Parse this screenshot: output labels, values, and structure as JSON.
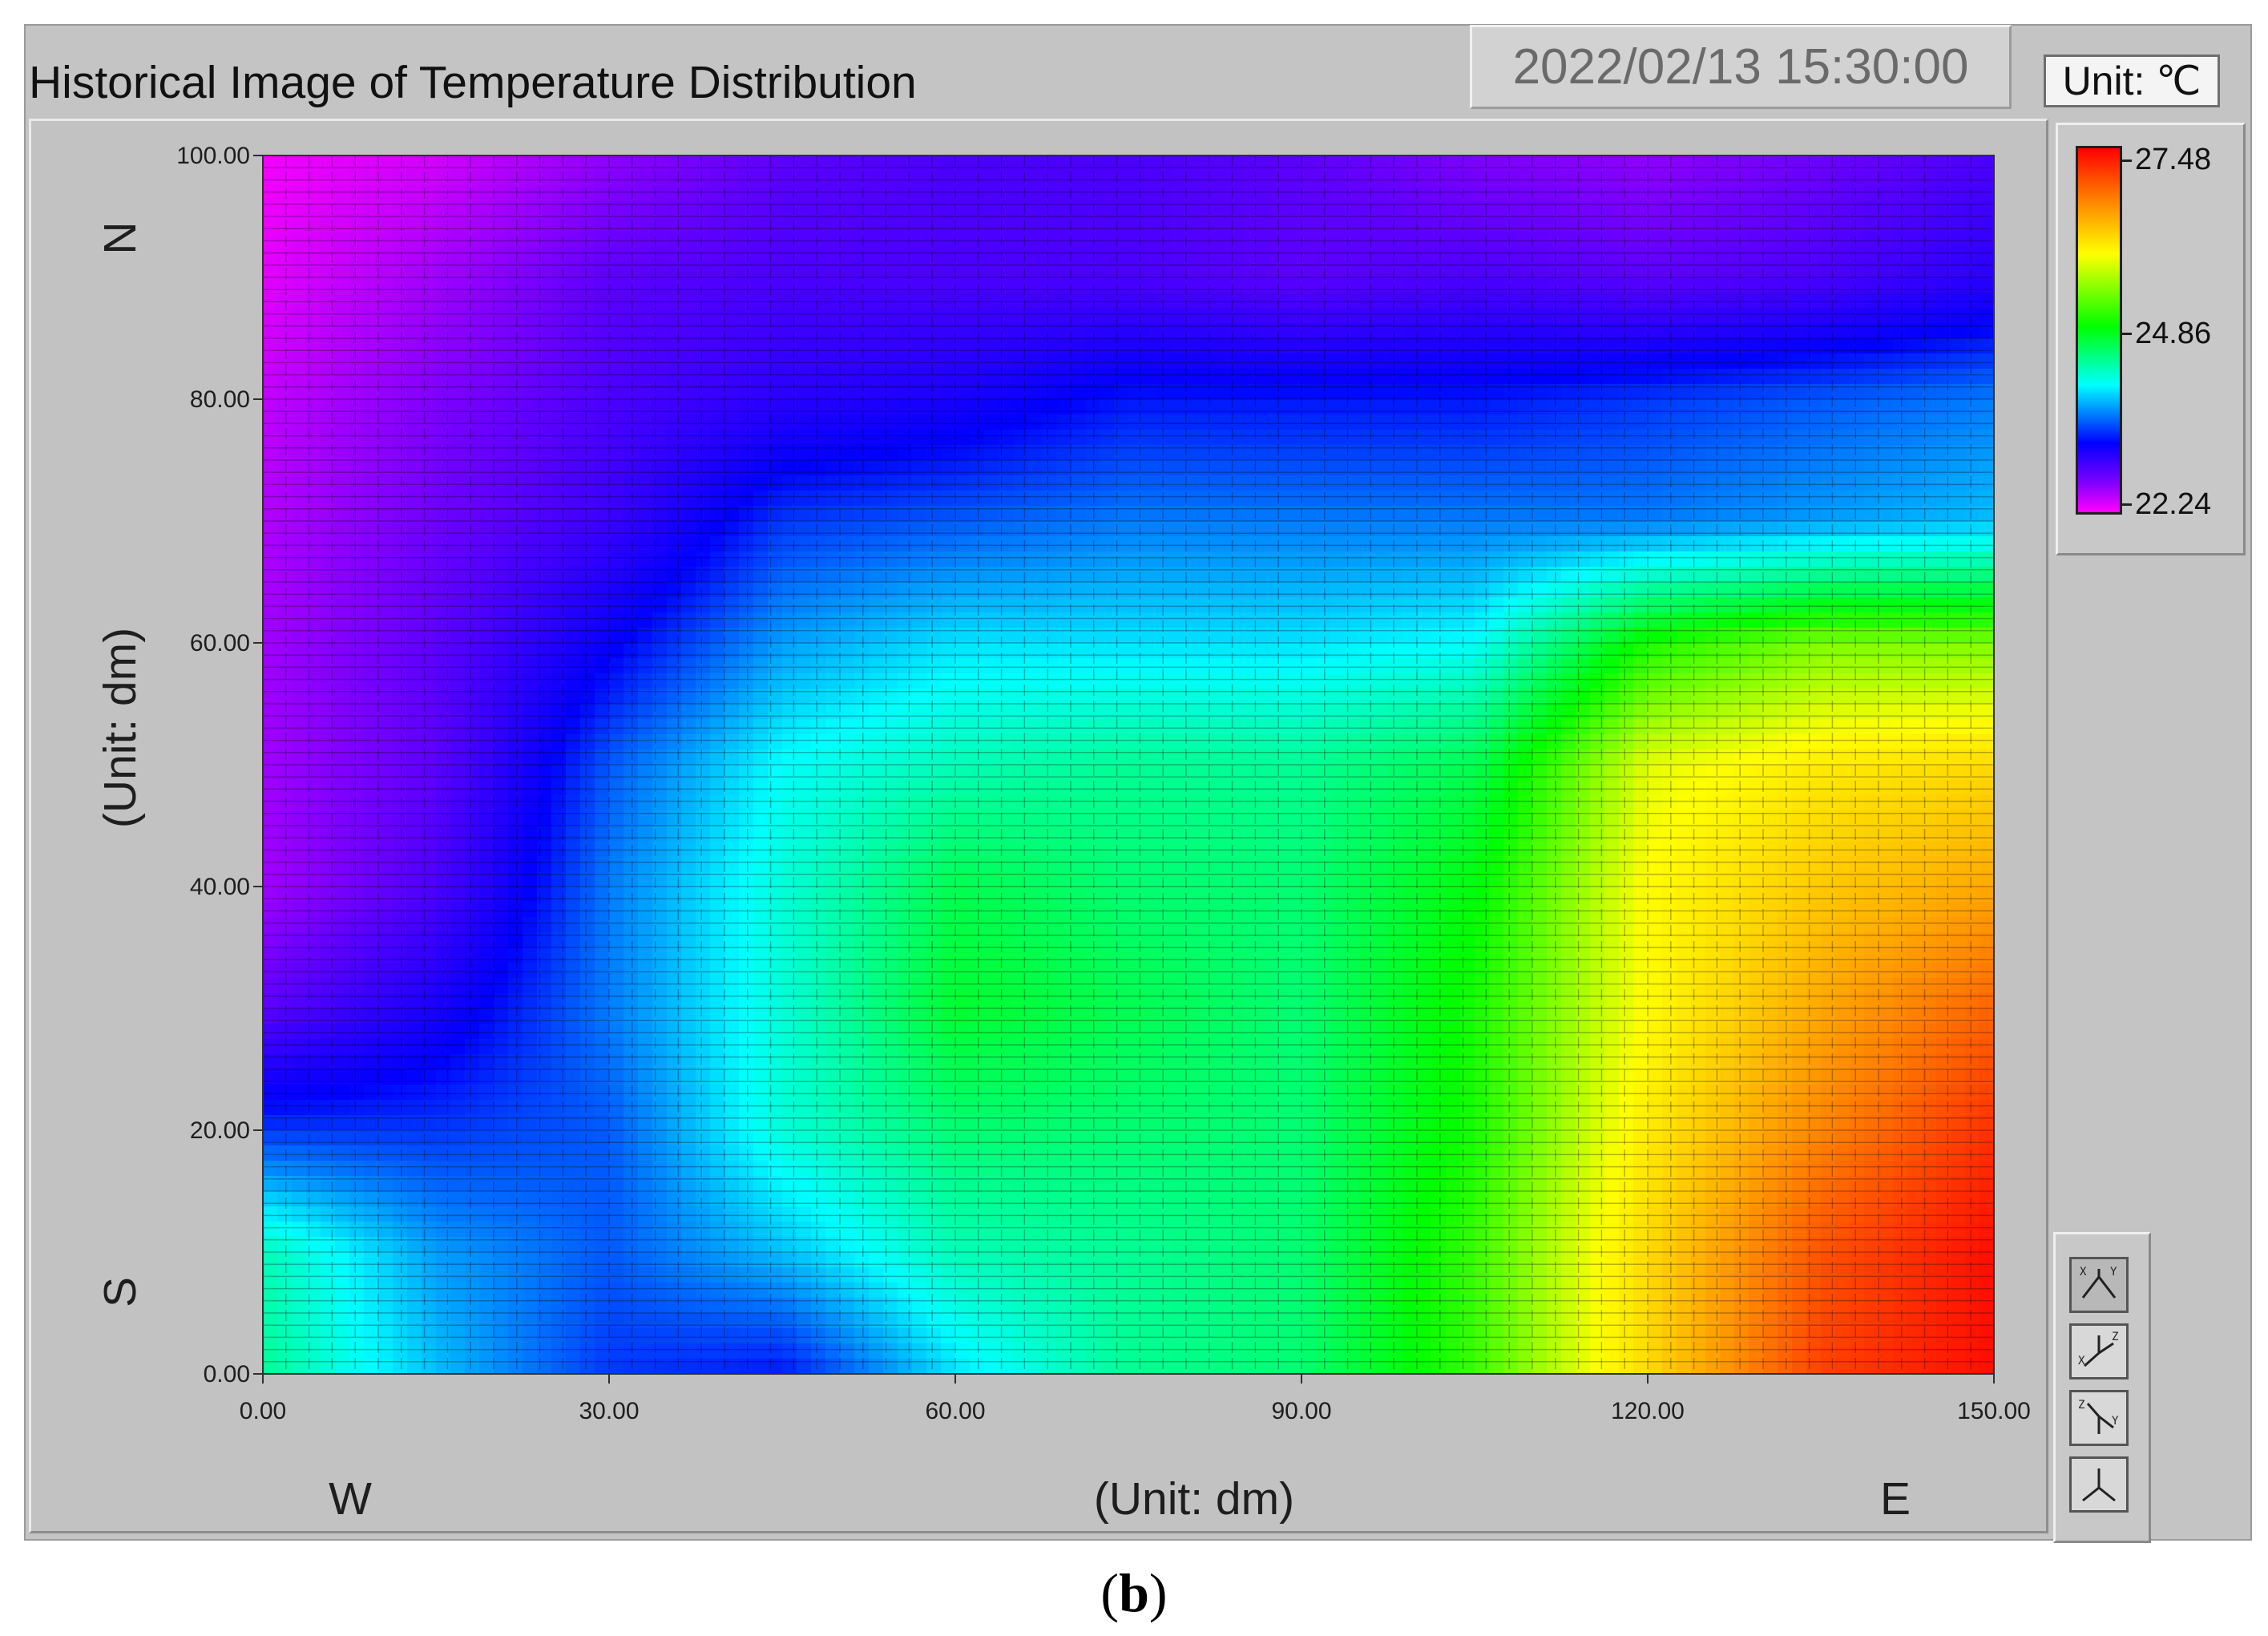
{
  "window": {
    "title": "Historical Image of Temperature Distribution",
    "timestamp": "2022/02/13 15:30:00",
    "unit_label": "Unit: ℃"
  },
  "graph": {
    "x_axis_title": "(Unit: dm)",
    "y_axis_title": "(Unit: dm)",
    "x_ticks": [
      "0.00",
      "30.00",
      "60.00",
      "90.00",
      "120.00",
      "150.00"
    ],
    "y_ticks": [
      "0.00",
      "20.00",
      "40.00",
      "60.00",
      "80.00",
      "100.00"
    ],
    "direction_labels": {
      "north": "N",
      "south": "S",
      "west": "W",
      "east": "E"
    }
  },
  "color_scale": {
    "max_label": "27.48",
    "mid_label": "24.86",
    "min_label": "22.24",
    "colors": [
      "#ff0000",
      "#ff8000",
      "#ffff00",
      "#00ff00",
      "#00ffff",
      "#0000ff",
      "#8000ff",
      "#ff00ff"
    ]
  },
  "toolbar": {
    "buttons": [
      {
        "icon": "xy-plane-view-icon",
        "active": true
      },
      {
        "icon": "xz-plane-view-icon",
        "active": false
      },
      {
        "icon": "yz-plane-view-icon",
        "active": false
      },
      {
        "icon": "3d-axes-view-icon",
        "active": false
      }
    ]
  },
  "caption": {
    "open": "(",
    "letter": "b",
    "close": ")"
  },
  "chart_data": {
    "type": "heatmap",
    "title": "Historical Image of Temperature Distribution",
    "xlabel": "(Unit: dm)",
    "ylabel": "(Unit: dm)",
    "xlim": [
      0,
      150
    ],
    "ylim": [
      0,
      100
    ],
    "x_ticks": [
      0,
      30,
      60,
      90,
      120,
      150
    ],
    "y_ticks": [
      0,
      20,
      40,
      60,
      80,
      100
    ],
    "color_range": [
      22.24,
      27.48
    ],
    "grid": true,
    "colorbar": "right",
    "x": [
      0,
      15,
      30,
      45,
      60,
      75,
      90,
      105,
      120,
      135,
      150
    ],
    "y": [
      100,
      90,
      80,
      70,
      60,
      50,
      40,
      30,
      20,
      10,
      0
    ],
    "z": [
      [
        22.3,
        22.5,
        22.9,
        23.2,
        23.3,
        23.3,
        23.2,
        23.0,
        22.9,
        23.1,
        23.3
      ],
      [
        22.4,
        22.8,
        23.2,
        23.3,
        23.3,
        23.3,
        23.2,
        23.3,
        23.2,
        23.3,
        23.5
      ],
      [
        22.6,
        23.0,
        23.3,
        23.5,
        23.6,
        23.8,
        23.8,
        23.8,
        23.9,
        24.0,
        24.1
      ],
      [
        22.7,
        23.1,
        23.4,
        23.9,
        24.0,
        24.1,
        24.1,
        24.1,
        24.1,
        24.2,
        24.3
      ],
      [
        22.8,
        23.2,
        23.7,
        24.2,
        24.4,
        24.4,
        24.4,
        24.5,
        25.3,
        25.6,
        25.6
      ],
      [
        22.8,
        23.2,
        24.0,
        24.5,
        24.7,
        24.8,
        24.8,
        25.0,
        25.9,
        26.1,
        26.2
      ],
      [
        22.8,
        23.3,
        24.1,
        24.6,
        25.0,
        24.9,
        24.9,
        25.2,
        26.0,
        26.3,
        26.5
      ],
      [
        23.2,
        23.6,
        24.1,
        24.6,
        25.1,
        25.0,
        24.9,
        25.3,
        26.0,
        26.5,
        26.9
      ],
      [
        23.9,
        23.9,
        24.0,
        24.6,
        24.9,
        24.9,
        24.9,
        25.3,
        26.1,
        26.7,
        27.2
      ],
      [
        24.7,
        24.2,
        24.0,
        24.3,
        24.7,
        24.8,
        24.9,
        25.4,
        26.2,
        27.0,
        27.4
      ],
      [
        24.8,
        24.3,
        23.9,
        23.8,
        24.4,
        24.8,
        24.9,
        25.4,
        26.2,
        27.1,
        27.4
      ]
    ]
  }
}
